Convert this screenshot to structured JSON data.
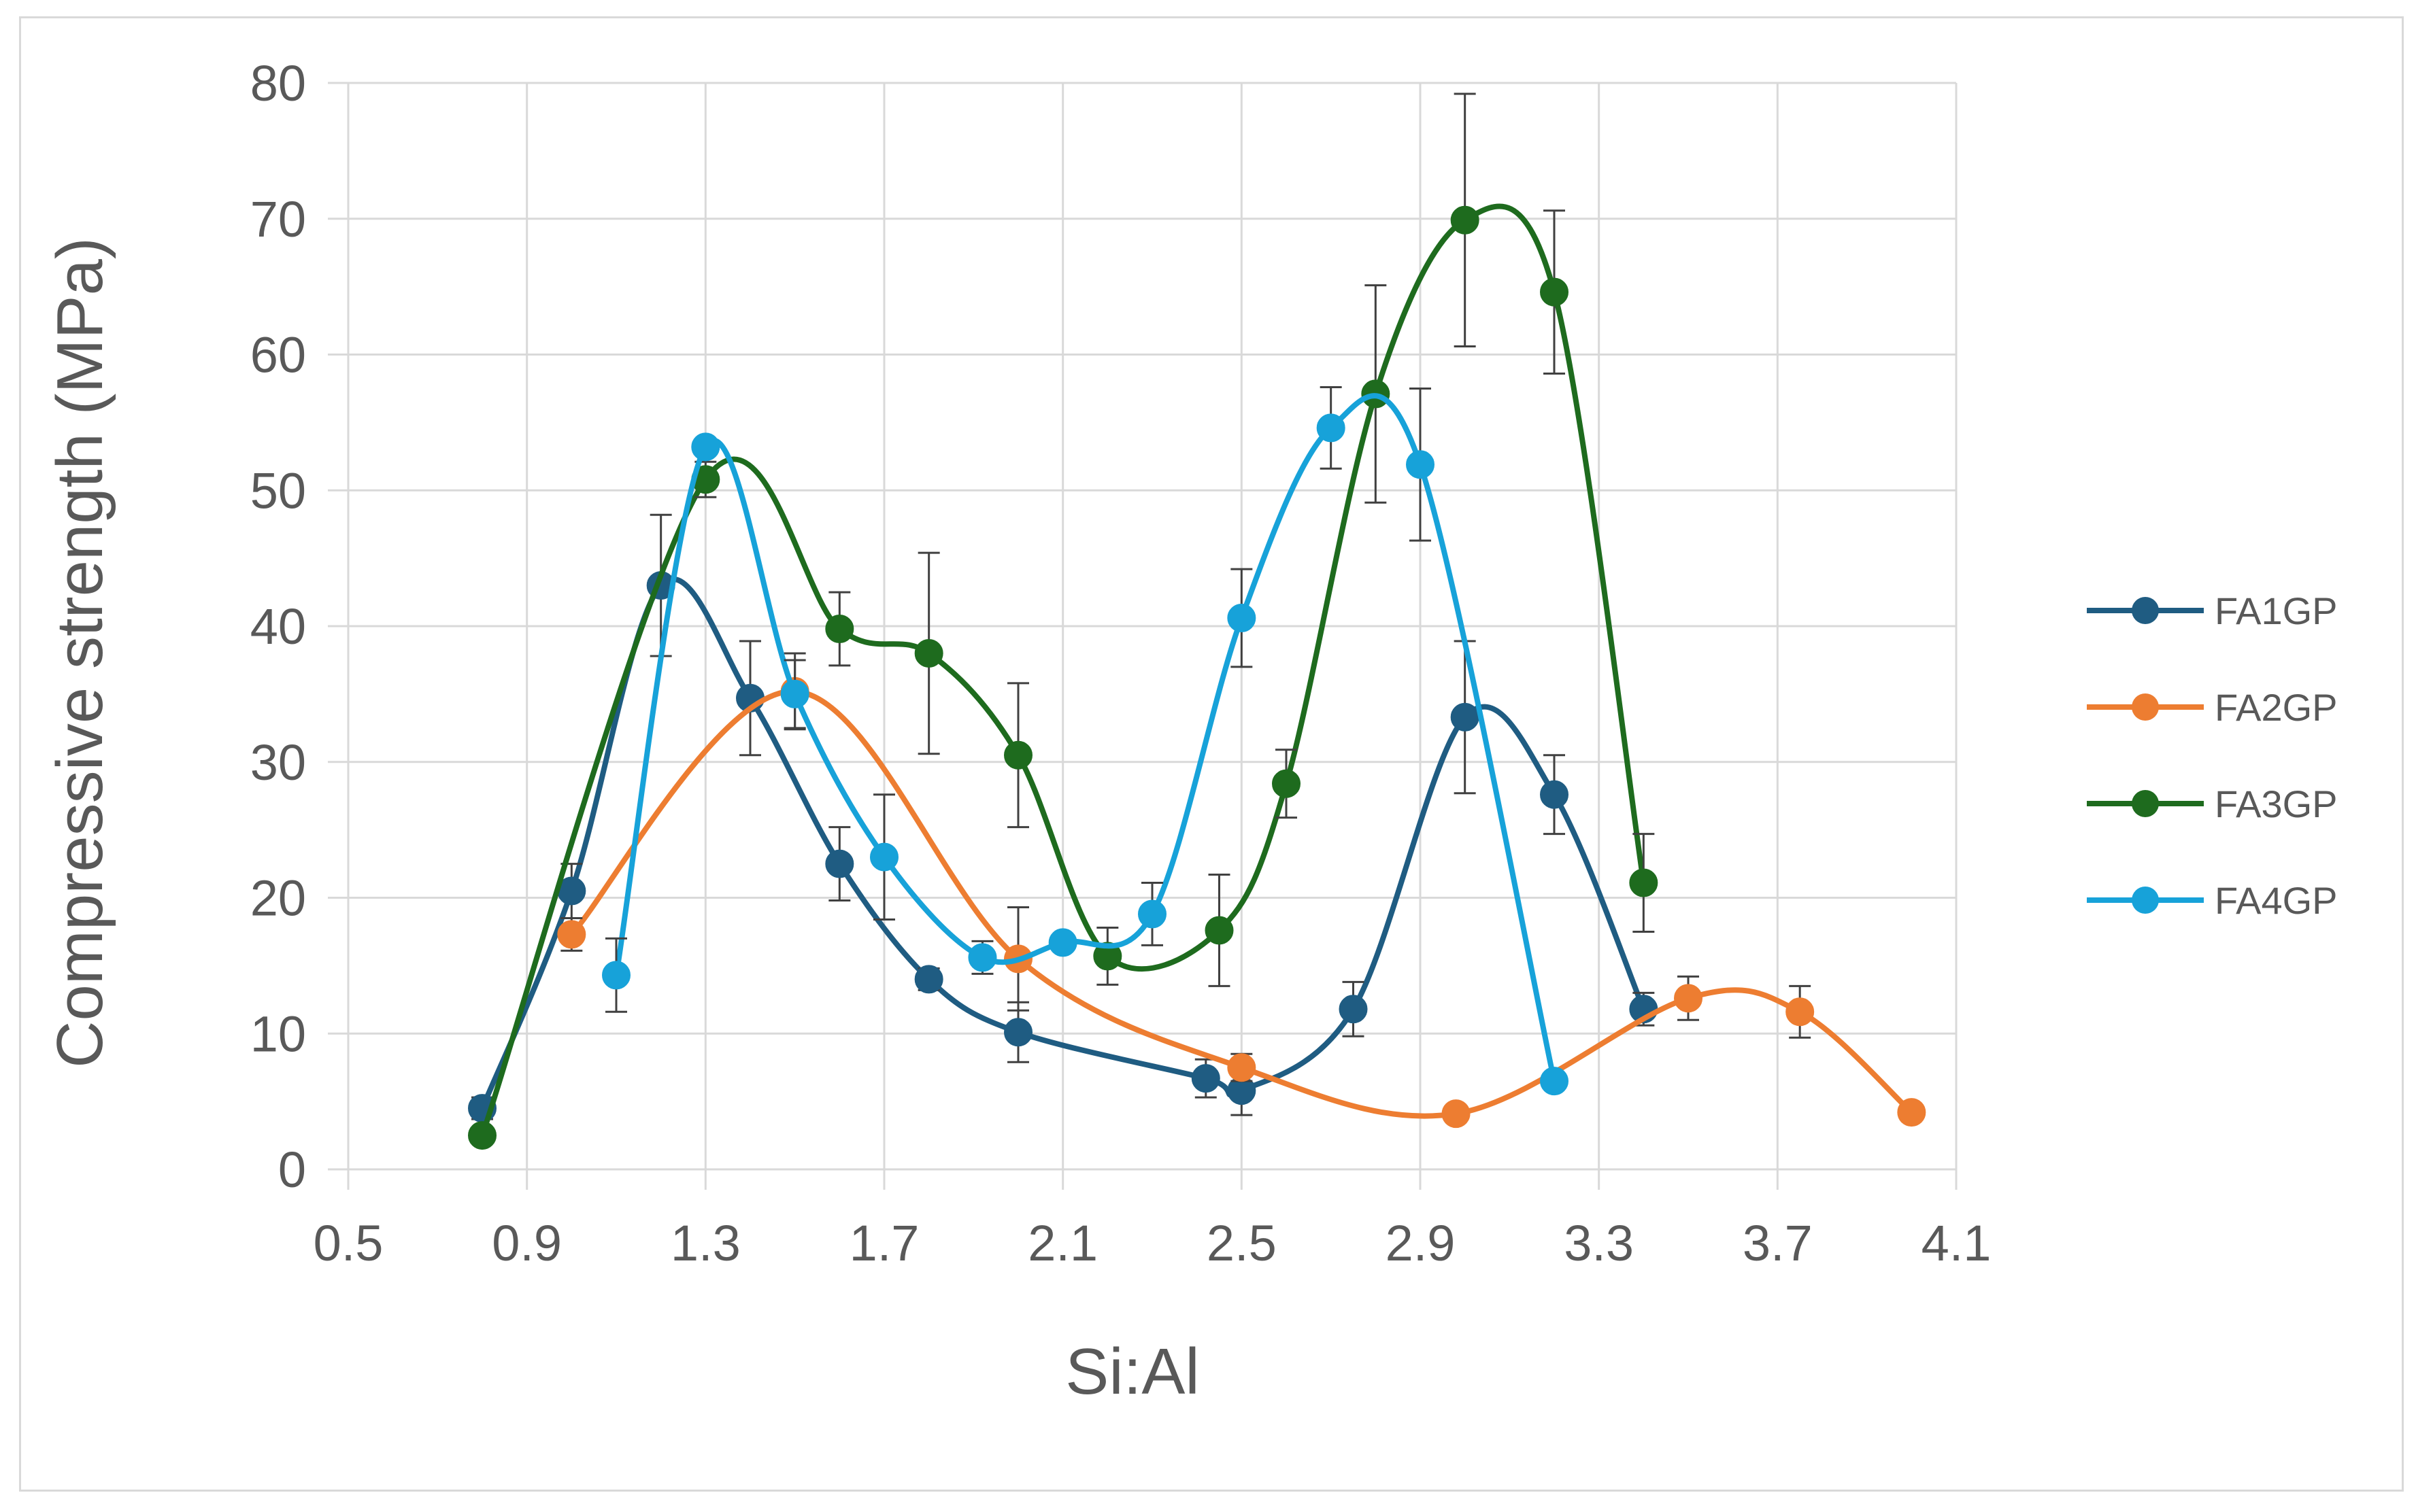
{
  "chart_data": {
    "type": "scatter",
    "title": "",
    "xlabel": "Si:Al",
    "ylabel": "Compressive strength (MPa)",
    "xlim": [
      0.5,
      4.1
    ],
    "ylim": [
      0,
      80
    ],
    "x_ticks": [
      "0.5",
      "0.9",
      "1.3",
      "1.7",
      "2.1",
      "2.5",
      "2.9",
      "3.3",
      "3.7",
      "4.1"
    ],
    "y_ticks": [
      "0",
      "10",
      "20",
      "30",
      "40",
      "50",
      "60",
      "70",
      "80"
    ],
    "grid": true,
    "smooth_lines": true,
    "legend_position": "right",
    "series": [
      {
        "name": "FA1GP",
        "color": "#1f5c82",
        "points": [
          {
            "x": 0.8,
            "y": 4.5,
            "err": 0.8
          },
          {
            "x": 1.0,
            "y": 20.5,
            "err": 2.0
          },
          {
            "x": 1.2,
            "y": 43.0,
            "err": 5.2
          },
          {
            "x": 1.4,
            "y": 34.7,
            "err": 4.2
          },
          {
            "x": 1.6,
            "y": 22.5,
            "err": 2.7
          },
          {
            "x": 1.8,
            "y": 14.0,
            "err": 0.8
          },
          {
            "x": 2.0,
            "y": 10.1,
            "err": 2.2
          },
          {
            "x": 2.42,
            "y": 6.7,
            "err": 1.4
          },
          {
            "x": 2.5,
            "y": 5.8,
            "err": 1.8
          },
          {
            "x": 2.75,
            "y": 11.8,
            "err": 2.0
          },
          {
            "x": 3.0,
            "y": 33.3,
            "err": 5.6
          },
          {
            "x": 3.2,
            "y": 27.6,
            "err": 2.9
          },
          {
            "x": 3.4,
            "y": 11.8,
            "err": 1.2
          }
        ]
      },
      {
        "name": "FA2GP",
        "color": "#ed7d31",
        "points": [
          {
            "x": 1.0,
            "y": 17.3,
            "err": 1.2
          },
          {
            "x": 1.5,
            "y": 35.2,
            "err": 2.8
          },
          {
            "x": 2.0,
            "y": 15.5,
            "err": 3.8
          },
          {
            "x": 2.5,
            "y": 7.5,
            "err": 1.0
          },
          {
            "x": 2.98,
            "y": 4.1,
            "err": 0.6
          },
          {
            "x": 3.5,
            "y": 12.6,
            "err": 1.6
          },
          {
            "x": 3.75,
            "y": 11.6,
            "err": 1.9
          },
          {
            "x": 4.0,
            "y": 4.2,
            "err": 0.4
          }
        ]
      },
      {
        "name": "FA3GP",
        "color": "#1e6b1e",
        "points": [
          {
            "x": 0.8,
            "y": 2.5,
            "err": 0.5
          },
          {
            "x": 1.3,
            "y": 50.8,
            "err": 1.3
          },
          {
            "x": 1.6,
            "y": 39.8,
            "err": 2.7
          },
          {
            "x": 1.8,
            "y": 38.0,
            "err": 7.4
          },
          {
            "x": 2.0,
            "y": 30.5,
            "err": 5.3
          },
          {
            "x": 2.2,
            "y": 15.7,
            "err": 2.1
          },
          {
            "x": 2.45,
            "y": 17.6,
            "err": 4.1
          },
          {
            "x": 2.6,
            "y": 28.4,
            "err": 2.5
          },
          {
            "x": 2.8,
            "y": 57.1,
            "err": 8.0
          },
          {
            "x": 3.0,
            "y": 69.9,
            "err": 9.3
          },
          {
            "x": 3.2,
            "y": 64.6,
            "err": 6.0
          },
          {
            "x": 3.4,
            "y": 21.1,
            "err": 3.6
          }
        ]
      },
      {
        "name": "FA4GP",
        "color": "#17a2d9",
        "points": [
          {
            "x": 1.1,
            "y": 14.3,
            "err": 2.7
          },
          {
            "x": 1.3,
            "y": 53.2,
            "err": 0.5
          },
          {
            "x": 1.5,
            "y": 35.0,
            "err": 2.5
          },
          {
            "x": 1.7,
            "y": 23.0,
            "err": 4.6
          },
          {
            "x": 1.92,
            "y": 15.6,
            "err": 1.2
          },
          {
            "x": 2.1,
            "y": 16.7,
            "err": 0.5
          },
          {
            "x": 2.3,
            "y": 18.8,
            "err": 2.3
          },
          {
            "x": 2.5,
            "y": 40.6,
            "err": 3.6
          },
          {
            "x": 2.7,
            "y": 54.6,
            "err": 3.0
          },
          {
            "x": 2.9,
            "y": 51.9,
            "err": 5.6
          },
          {
            "x": 3.2,
            "y": 6.5,
            "err": 0.0
          }
        ]
      }
    ]
  }
}
